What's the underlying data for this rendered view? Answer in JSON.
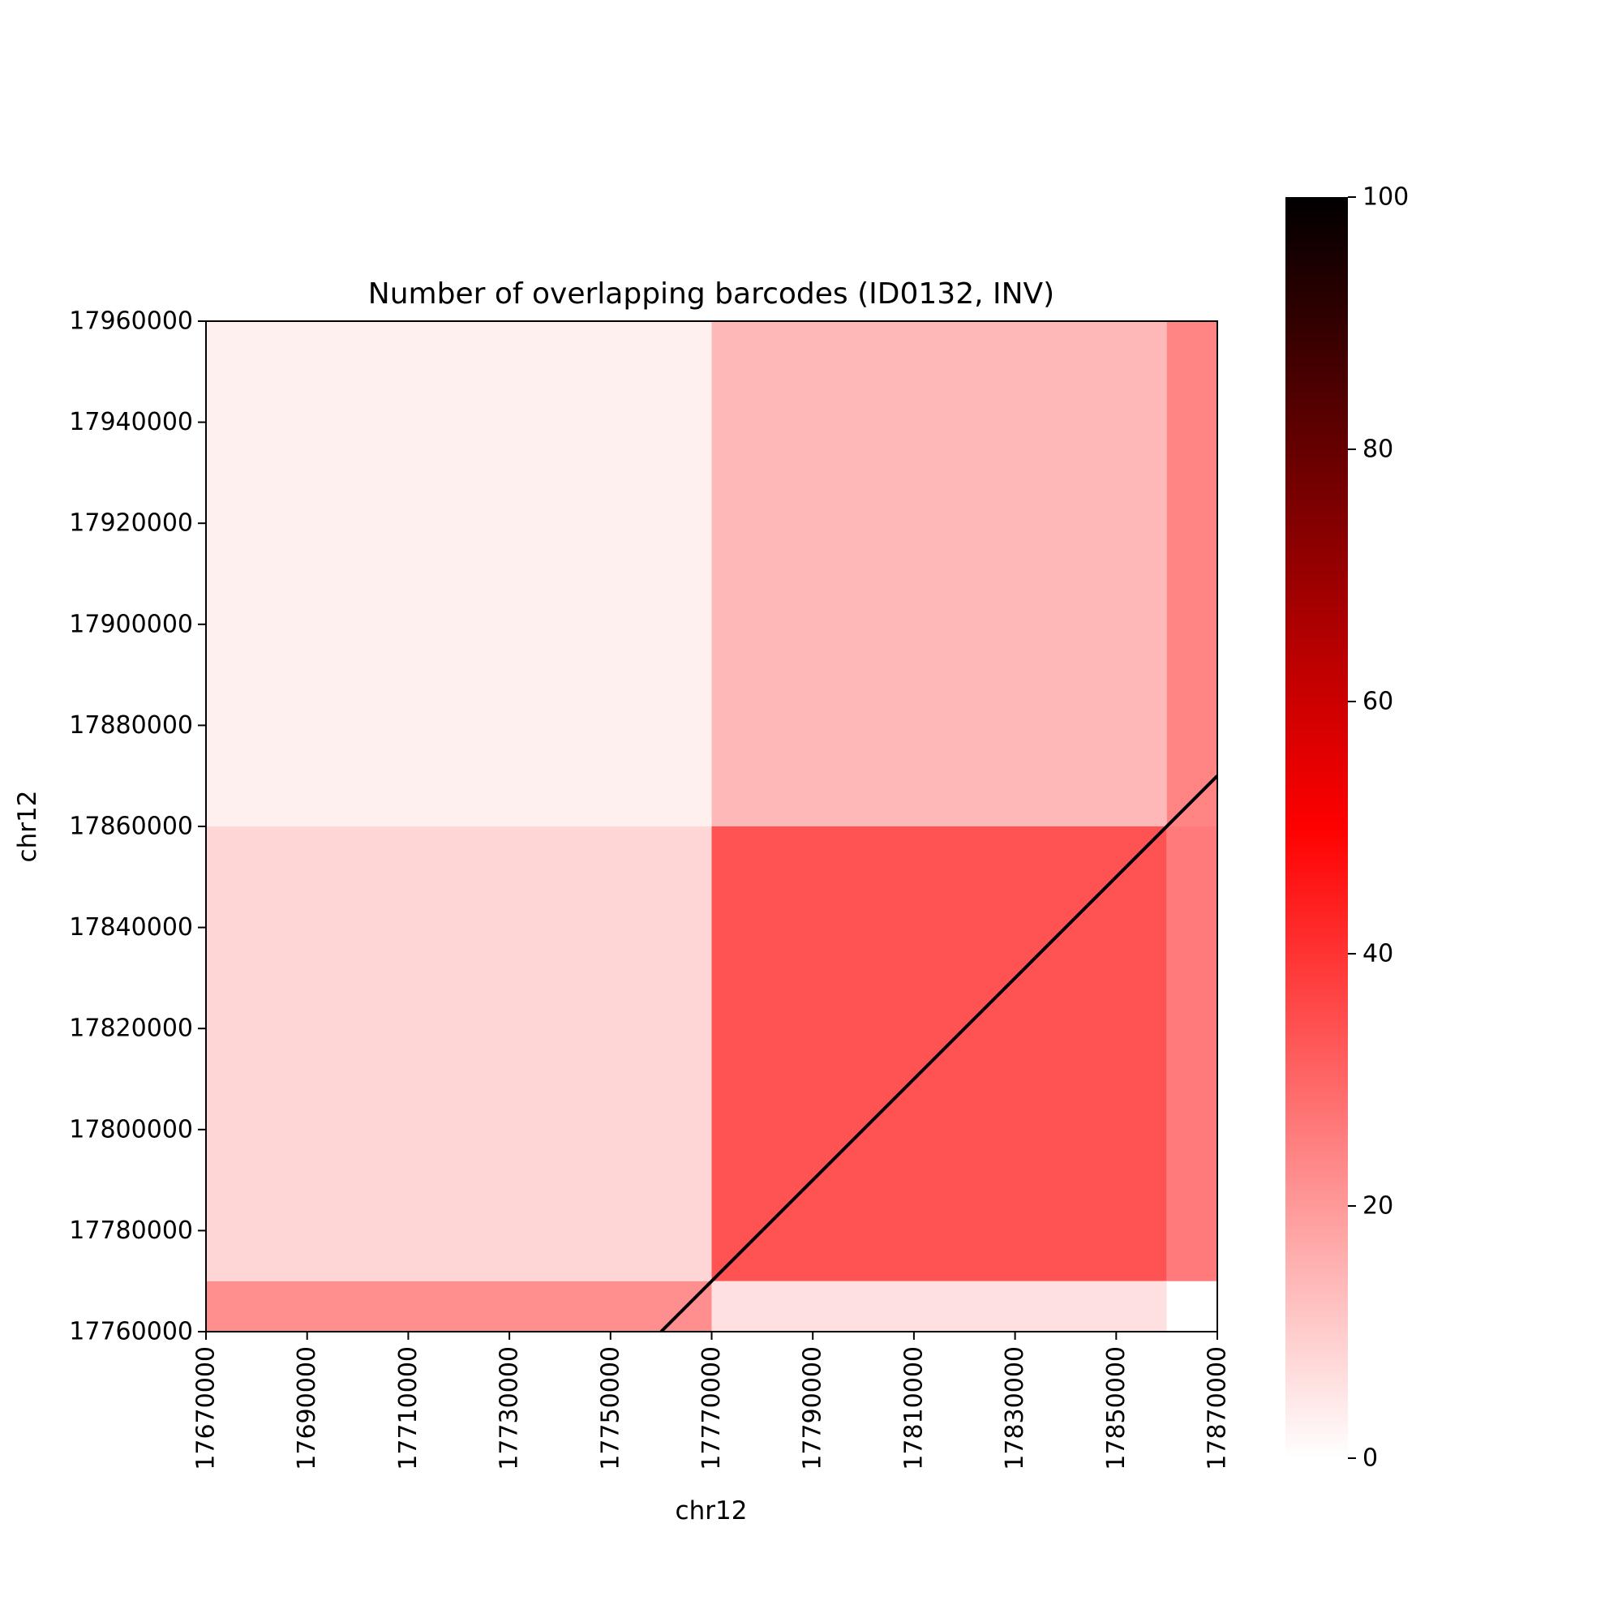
{
  "chart_data": {
    "type": "heatmap",
    "title": "Number of overlapping barcodes (ID0132, INV)",
    "xlabel": "chr12",
    "ylabel": "chr12",
    "x_range": [
      17670000,
      17870000
    ],
    "y_range": [
      17760000,
      17960000
    ],
    "x_ticks": [
      "17670000",
      "17690000",
      "17710000",
      "17730000",
      "17750000",
      "17770000",
      "17790000",
      "17810000",
      "17830000",
      "17850000",
      "17870000"
    ],
    "y_ticks": [
      "17760000",
      "17780000",
      "17800000",
      "17820000",
      "17840000",
      "17860000",
      "17880000",
      "17900000",
      "17920000",
      "17940000",
      "17960000"
    ],
    "colorbar": {
      "range": [
        0,
        100
      ],
      "ticks": [
        "0",
        "20",
        "40",
        "60",
        "80",
        "100"
      ],
      "colors": [
        "#ffffff",
        "#ff0000",
        "#000000"
      ]
    },
    "grid": false,
    "diagonal": {
      "from": [
        17760000,
        17760000
      ],
      "to": [
        17870000,
        17870000
      ],
      "value": 100
    },
    "blocks": [
      {
        "x": [
          17770000,
          17860000
        ],
        "y": [
          17770000,
          17860000
        ],
        "value": 34
      },
      {
        "x": [
          17670000,
          17770000
        ],
        "y": [
          17760000,
          17770000
        ],
        "value": 22
      },
      {
        "x": [
          17770000,
          17860000
        ],
        "y": [
          17760000,
          17770000
        ],
        "value": 6
      },
      {
        "x": [
          17860000,
          17870000
        ],
        "y": [
          17770000,
          17860000
        ],
        "value": 26
      },
      {
        "x": [
          17670000,
          17770000
        ],
        "y": [
          17770000,
          17860000
        ],
        "value": 8
      },
      {
        "x": [
          17770000,
          17860000
        ],
        "y": [
          17860000,
          17960000
        ],
        "value": 14
      },
      {
        "x": [
          17860000,
          17870000
        ],
        "y": [
          17860000,
          17960000
        ],
        "value": 24
      },
      {
        "x": [
          17670000,
          17770000
        ],
        "y": [
          17860000,
          17960000
        ],
        "value": 3
      }
    ]
  }
}
